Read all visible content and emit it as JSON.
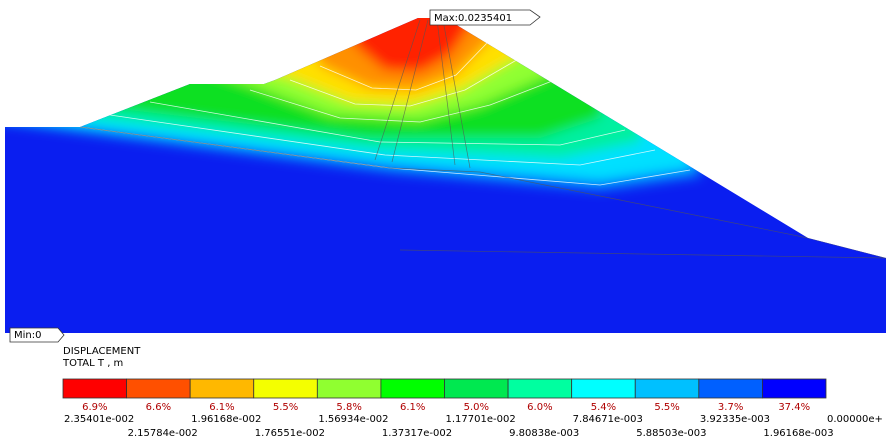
{
  "plot": {
    "max_label": "Max:0.0235401",
    "min_label": "Min:0"
  },
  "legend": {
    "title": "DISPLACEMENT",
    "subtitle": "TOTAL T , m",
    "items": [
      {
        "color": "#ff0000",
        "percent": "6.9%"
      },
      {
        "color": "#ff5000",
        "percent": "6.6%"
      },
      {
        "color": "#ffb800",
        "percent": "6.1%"
      },
      {
        "color": "#f4ff00",
        "percent": "5.5%"
      },
      {
        "color": "#90ff30",
        "percent": "5.8%"
      },
      {
        "color": "#00ff00",
        "percent": "6.1%"
      },
      {
        "color": "#00e850",
        "percent": "5.0%"
      },
      {
        "color": "#00ffa0",
        "percent": "6.0%"
      },
      {
        "color": "#00ffff",
        "percent": "5.4%"
      },
      {
        "color": "#00c0ff",
        "percent": "5.5%"
      },
      {
        "color": "#0060ff",
        "percent": "3.7%"
      },
      {
        "color": "#0000ff",
        "percent": "37.4%"
      }
    ],
    "values": [
      "2.35401e-002",
      "2.15784e-002",
      "1.96168e-002",
      "1.76551e-002",
      "1.56934e-002",
      "1.37317e-002",
      "1.17701e-002",
      "9.80838e-003",
      "7.84671e-003",
      "5.88503e-003",
      "3.92335e-003",
      "1.96168e-003",
      "0.00000e+"
    ]
  }
}
